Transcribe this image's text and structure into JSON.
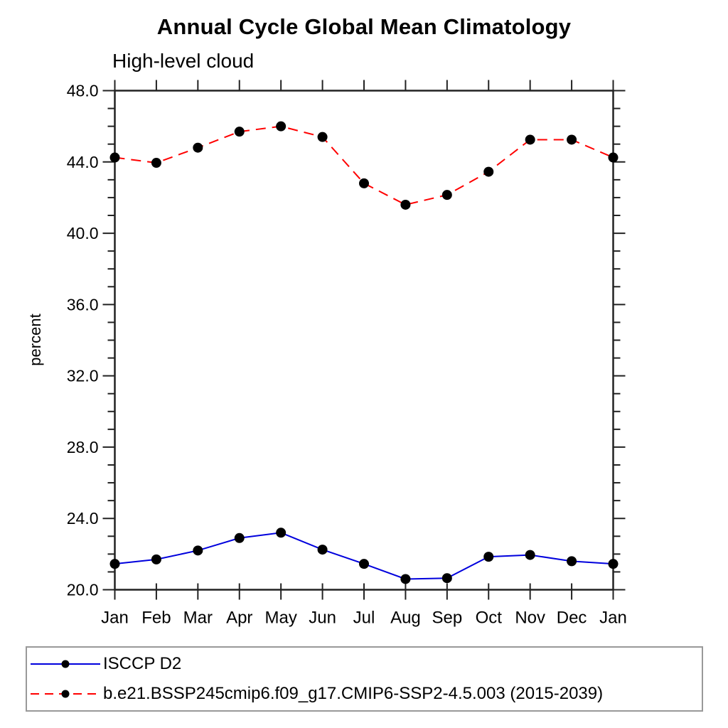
{
  "chart_data": {
    "type": "line",
    "title": "Annual Cycle Global Mean Climatology",
    "subtitle": "High-level cloud",
    "xlabel": "",
    "ylabel": "percent",
    "categories": [
      "Jan",
      "Feb",
      "Mar",
      "Apr",
      "May",
      "Jun",
      "Jul",
      "Aug",
      "Sep",
      "Oct",
      "Nov",
      "Dec",
      "Jan"
    ],
    "ylim": [
      20.0,
      48.0
    ],
    "ytick_major_step": 4.0,
    "ytick_minor_step": 1.0,
    "ytick_labels": [
      "20.0",
      "24.0",
      "28.0",
      "32.0",
      "36.0",
      "40.0",
      "44.0",
      "48.0"
    ],
    "grid": false,
    "legend_position": "bottom",
    "series": [
      {
        "name": "ISCCP D2",
        "line_style": "solid",
        "color": "#0000dd",
        "marker": "filled-circle",
        "marker_color": "#000000",
        "values": [
          21.45,
          21.7,
          22.2,
          22.9,
          23.2,
          22.25,
          21.45,
          20.6,
          20.65,
          21.85,
          21.95,
          21.6,
          21.45
        ]
      },
      {
        "name": "b.e21.BSSP245cmip6.f09_g17.CMIP6-SSP2-4.5.003 (2015-2039)",
        "line_style": "dashed",
        "color": "#ff0000",
        "marker": "filled-circle",
        "marker_color": "#000000",
        "values": [
          44.25,
          43.95,
          44.8,
          45.7,
          46.0,
          45.4,
          42.8,
          41.6,
          42.15,
          43.45,
          45.25,
          45.25,
          44.25
        ]
      }
    ],
    "colors": {
      "axis": "#222222",
      "text": "#000000",
      "legend_border": "#999999"
    }
  }
}
